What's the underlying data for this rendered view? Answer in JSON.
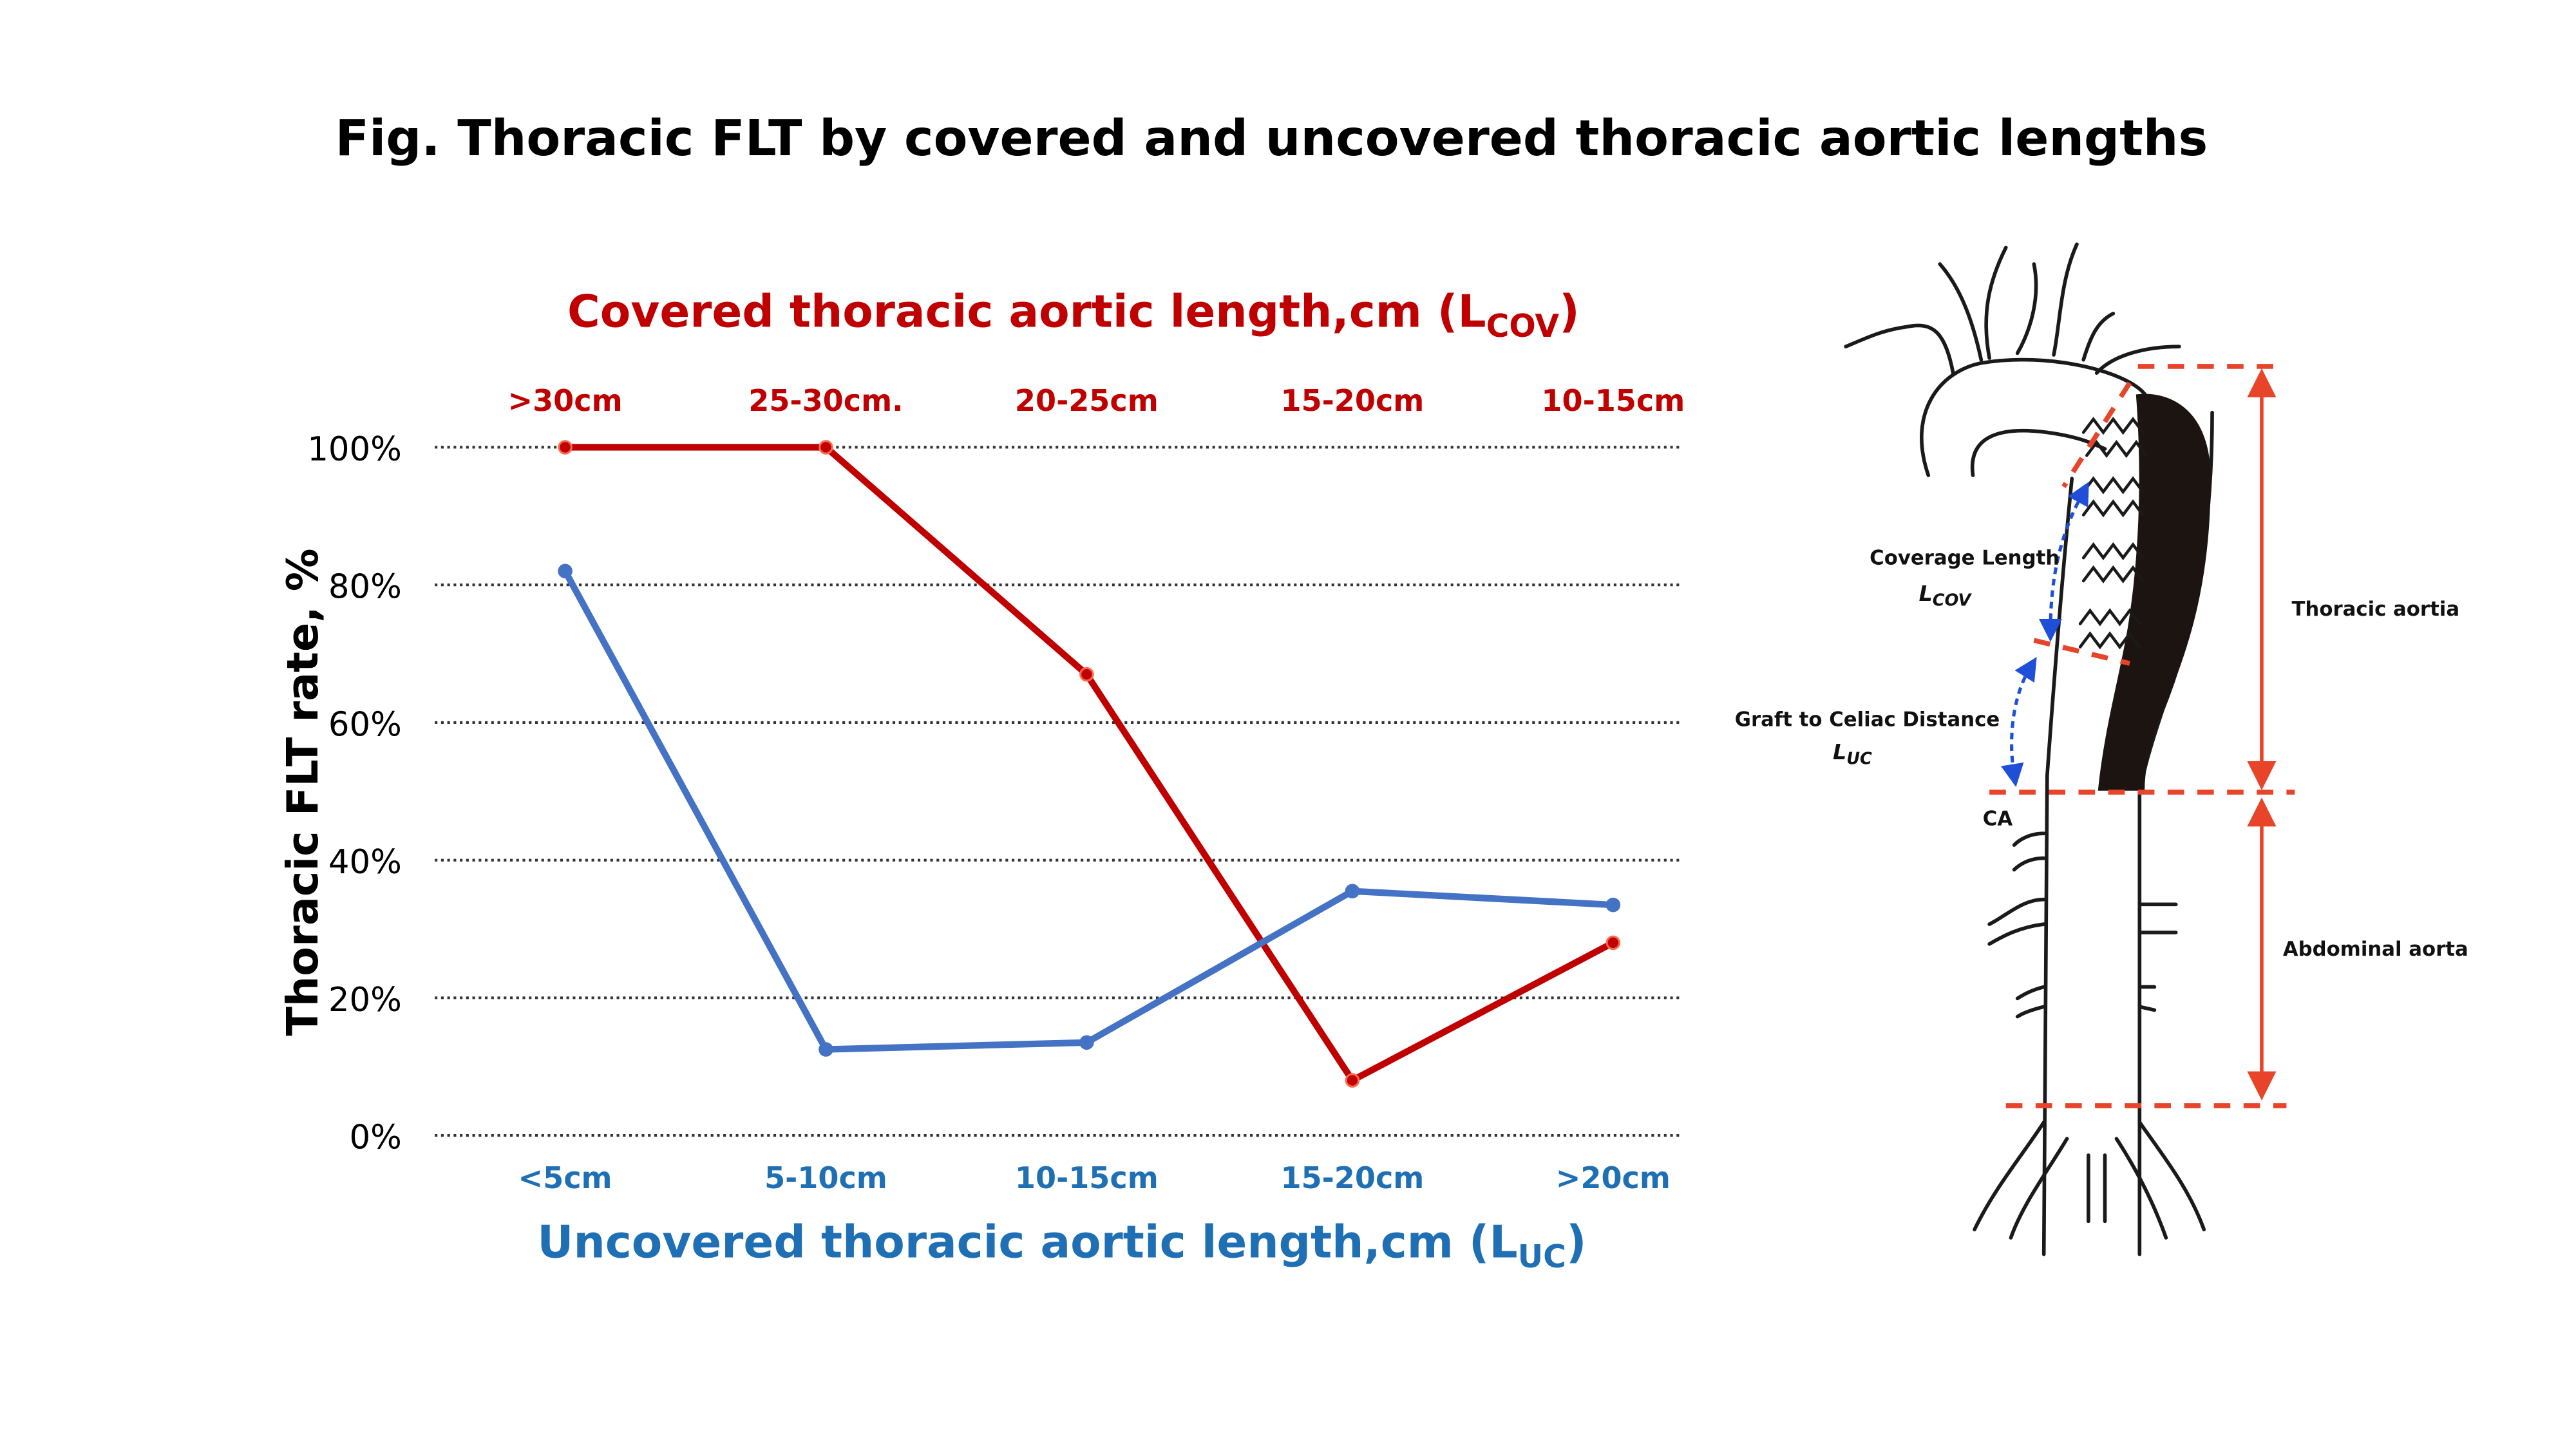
{
  "figure_title": "Fig. Thoracic FLT by covered and uncovered thoracic aortic lengths",
  "chart_data": {
    "type": "line",
    "title": "",
    "top_axis": {
      "label_main": "Covered thoracic aortic length,cm (L",
      "label_sub": "COV",
      "label_end": ")",
      "categories": [
        ">30cm",
        "25-30cm.",
        "20-25cm",
        "15-20cm",
        "10-15cm"
      ]
    },
    "bottom_axis": {
      "label_main": "Uncovered thoracic aortic length,cm (L",
      "label_sub": "UC",
      "label_end": ")",
      "categories": [
        "<5cm",
        "5-10cm",
        "10-15cm",
        "15-20cm",
        ">20cm"
      ]
    },
    "ylabel": "Thoracic FLT rate, %",
    "ylim": [
      0,
      100
    ],
    "yticks": [
      "0%",
      "20%",
      "40%",
      "60%",
      "80%",
      "100%"
    ],
    "grid": true,
    "series": [
      {
        "axis": "top",
        "color": "#c00000",
        "values": [
          100,
          100,
          67,
          8,
          28
        ]
      },
      {
        "axis": "bottom",
        "color": "#4472c4",
        "values": [
          82,
          12.5,
          13.5,
          35.5,
          33.5
        ]
      }
    ]
  },
  "diagram": {
    "coverage_label": "Coverage Length",
    "coverage_sym": "L",
    "coverage_sub": "COV",
    "distance_label": "Graft to Celiac Distance",
    "distance_sym": "L",
    "distance_sub": "UC",
    "ca_label": "CA",
    "thoracic_label": "Thoracic aortia",
    "abdominal_label": "Abdominal aorta"
  },
  "colors": {
    "red": "#c00000",
    "blue": "#4472c4",
    "blue_text": "#1f6fb5",
    "dash_red": "#e8442a",
    "arrow_blue": "#1f4fd8"
  }
}
